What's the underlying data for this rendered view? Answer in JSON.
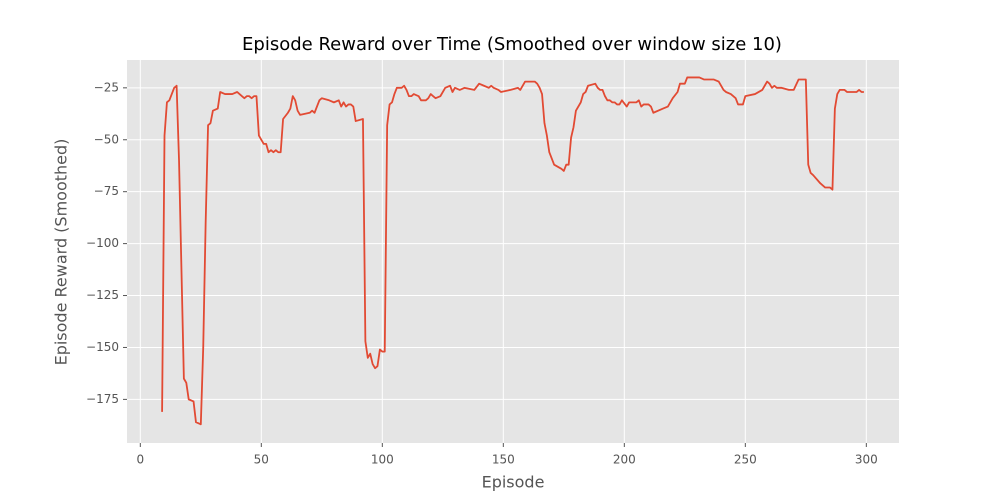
{
  "chart_data": {
    "type": "line",
    "title": "Episode Reward over Time (Smoothed over window size 10)",
    "x_label": "Episode",
    "y_label": "Episode Reward (Smoothed)",
    "color": "#E24A33",
    "grid": true,
    "xlim": [
      -5.5,
      313.5
    ],
    "ylim": [
      -196,
      -11.6
    ],
    "xticks": [
      0,
      50,
      100,
      150,
      200,
      250,
      300
    ],
    "yticks": [
      {
        "value": -175,
        "label": "−175"
      },
      {
        "value": -150,
        "label": "−150"
      },
      {
        "value": -125,
        "label": "−125"
      },
      {
        "value": -100,
        "label": "−100"
      },
      {
        "value": -75,
        "label": "−75"
      },
      {
        "value": -50,
        "label": "−50"
      },
      {
        "value": -25,
        "label": "−25"
      }
    ],
    "x": [
      9,
      10,
      11,
      12,
      13,
      14,
      15,
      16,
      18,
      19,
      20,
      22,
      23,
      25,
      26,
      27,
      28,
      29,
      30,
      32,
      33,
      35,
      38,
      40,
      42,
      43,
      44,
      45,
      46,
      47,
      48,
      49,
      51,
      52,
      53,
      54,
      55,
      56,
      57,
      58,
      59,
      61,
      62,
      63,
      64,
      65,
      66,
      70,
      71,
      72,
      74,
      75,
      78,
      80,
      82,
      83,
      84,
      85,
      86,
      87,
      88,
      89,
      92,
      93,
      94,
      95,
      96,
      97,
      98,
      99,
      100,
      101,
      102,
      103,
      104,
      105,
      106,
      108,
      109,
      110,
      111,
      112,
      113,
      115,
      116,
      118,
      119,
      120,
      121,
      122,
      124,
      126,
      128,
      129,
      130,
      132,
      134,
      138,
      140,
      142,
      144,
      145,
      146,
      148,
      149,
      153,
      156,
      157,
      159,
      163,
      164,
      165,
      166,
      167,
      168,
      169,
      171,
      174,
      175,
      176,
      177,
      178,
      179,
      180,
      182,
      183,
      184,
      185,
      188,
      189,
      190,
      191,
      192,
      193,
      194,
      195,
      196,
      197,
      198,
      199,
      201,
      202,
      203,
      205,
      206,
      207,
      208,
      210,
      211,
      212,
      216,
      218,
      220,
      222,
      223,
      225,
      226,
      231,
      233,
      237,
      239,
      241,
      242,
      244,
      246,
      247,
      249,
      250,
      254,
      257,
      258,
      259,
      260,
      261,
      262,
      263,
      265,
      268,
      270,
      272,
      275,
      276,
      277,
      278,
      281,
      283,
      285,
      286,
      287,
      288,
      289,
      291,
      292,
      296,
      297,
      298,
      299
    ],
    "values": [
      -181,
      -48,
      -32,
      -31,
      -28,
      -25,
      -24,
      -60,
      -165,
      -167,
      -175,
      -176,
      -186,
      -187,
      -150,
      -90,
      -43,
      -42,
      -36,
      -35,
      -27,
      -28,
      -28,
      -27,
      -29,
      -30,
      -29,
      -29,
      -30,
      -29,
      -29,
      -48,
      -52,
      -52,
      -56,
      -55,
      -56,
      -55,
      -56,
      -56,
      -40,
      -37,
      -35,
      -29,
      -31,
      -36,
      -38,
      -37,
      -36,
      -37,
      -31,
      -30,
      -31,
      -32,
      -31,
      -34,
      -32,
      -34,
      -33,
      -33,
      -34,
      -41,
      -40,
      -147,
      -155,
      -153,
      -158,
      -160,
      -159,
      -151,
      -152,
      -152,
      -43,
      -33,
      -32,
      -28,
      -25,
      -25,
      -24,
      -26,
      -29,
      -29,
      -28,
      -29,
      -31,
      -31,
      -30,
      -28,
      -29,
      -30,
      -29,
      -25,
      -24,
      -27,
      -25,
      -26,
      -25,
      -26,
      -23,
      -24,
      -25,
      -24,
      -25,
      -26,
      -27,
      -26,
      -25,
      -26,
      -22,
      -22,
      -23,
      -25,
      -28,
      -42,
      -48,
      -56,
      -62,
      -64,
      -65,
      -62,
      -62,
      -49,
      -44,
      -36,
      -32,
      -28,
      -27,
      -24,
      -23,
      -25,
      -26,
      -26,
      -29,
      -31,
      -31,
      -32,
      -32,
      -33,
      -33,
      -31,
      -34,
      -32,
      -32,
      -32,
      -31,
      -34,
      -33,
      -33,
      -34,
      -37,
      -35,
      -34,
      -30,
      -27,
      -23,
      -23,
      -20,
      -20,
      -21,
      -21,
      -22,
      -26,
      -27,
      -28,
      -30,
      -33,
      -33,
      -29,
      -28,
      -26,
      -24,
      -22,
      -23,
      -25,
      -24,
      -25,
      -25,
      -26,
      -26,
      -21,
      -21,
      -62,
      -66,
      -67,
      -71,
      -73,
      -73,
      -74,
      -35,
      -28,
      -26,
      -26,
      -27,
      -27,
      -26,
      -27,
      -27
    ]
  }
}
